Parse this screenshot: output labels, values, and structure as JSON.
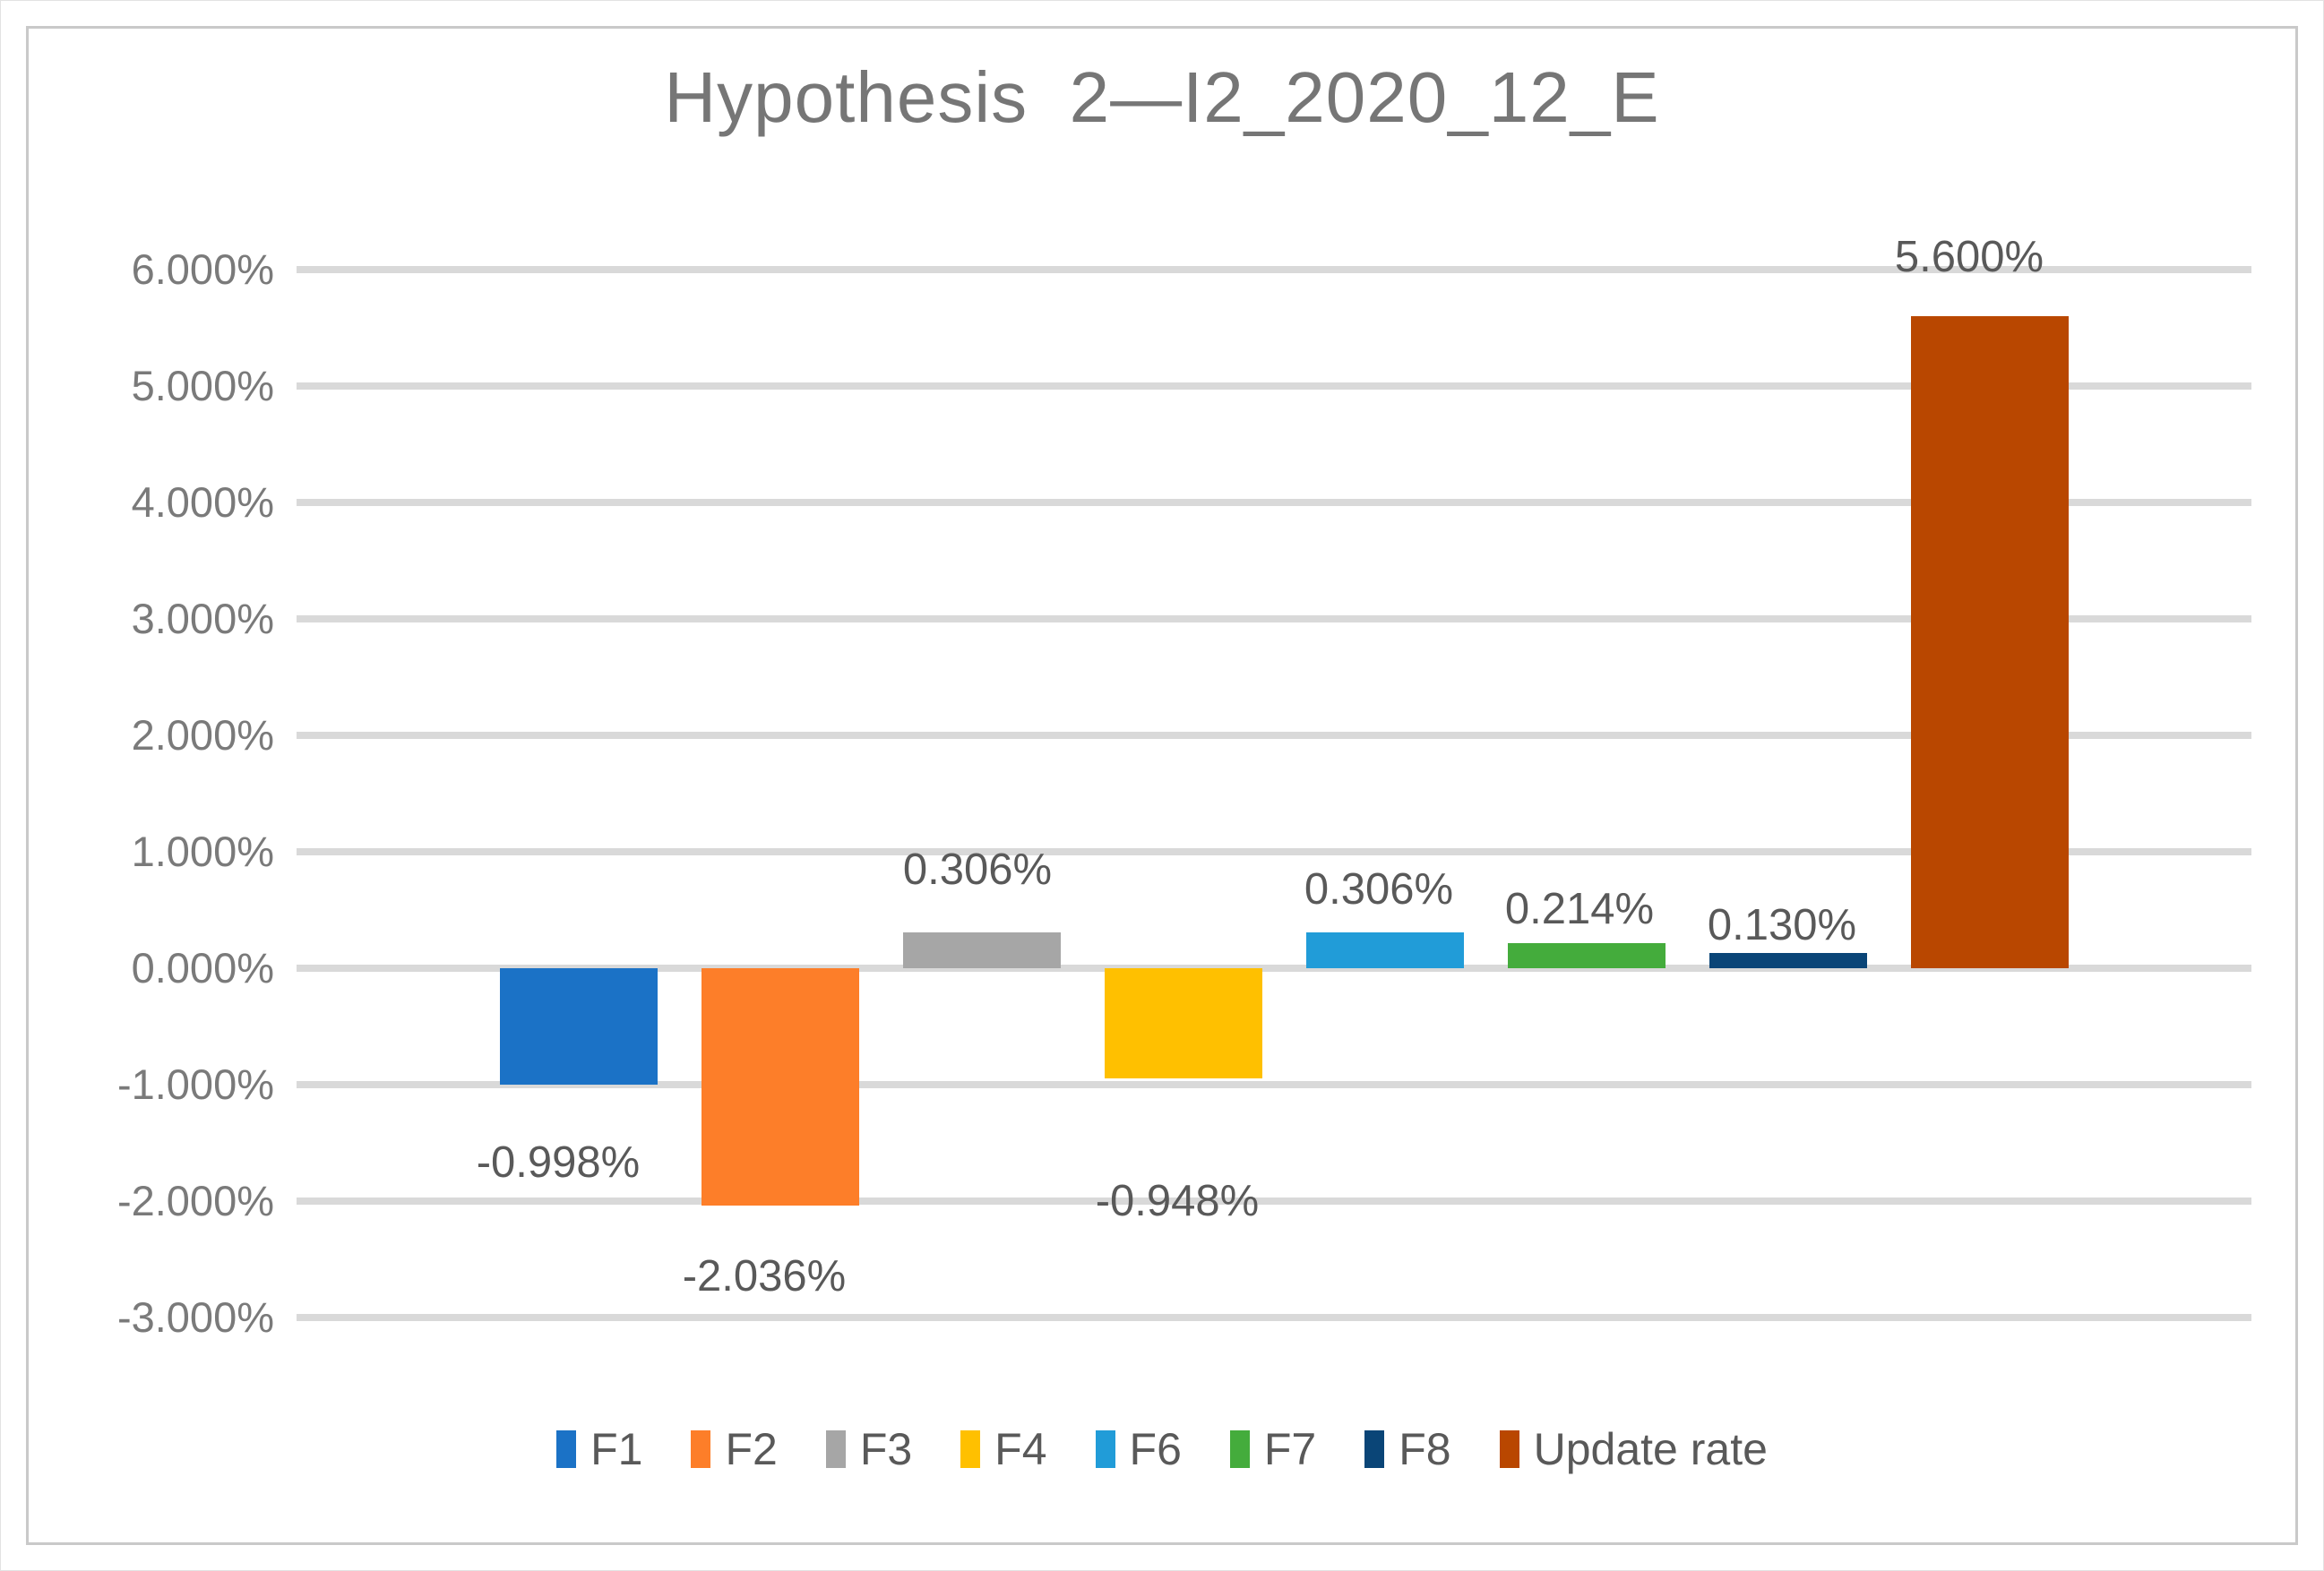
{
  "window": {
    "background": "#ffffff",
    "frame_border_color": "#c9c9c9"
  },
  "chart_data": {
    "type": "bar",
    "title": "Hypothesis  2—I2_2020_12_E",
    "title_color": "#767676",
    "grid": true,
    "gridline_color": "#d9d9d9",
    "legend_position": "bottom",
    "ylim": [
      -3.0,
      6.0
    ],
    "ytick_step": 1.0,
    "yticks": [
      {
        "value": 6,
        "label": "6.000%"
      },
      {
        "value": 5,
        "label": "5.000%"
      },
      {
        "value": 4,
        "label": "4.000%"
      },
      {
        "value": 3,
        "label": "3.000%"
      },
      {
        "value": 2,
        "label": "2.000%"
      },
      {
        "value": 1,
        "label": "1.000%"
      },
      {
        "value": 0,
        "label": "0.000%"
      },
      {
        "value": -1,
        "label": "-1.000%"
      },
      {
        "value": -2,
        "label": "-2.000%"
      },
      {
        "value": -3,
        "label": "-3.000%"
      }
    ],
    "categories": [
      "F1",
      "F2",
      "F3",
      "F4",
      "F6",
      "F7",
      "F8",
      "Update rate"
    ],
    "series": [
      {
        "name": "F1",
        "value": -0.998,
        "label": "-0.998%",
        "color": "#1b72c6"
      },
      {
        "name": "F2",
        "value": -2.036,
        "label": "-2.036%",
        "color": "#fd7e29"
      },
      {
        "name": "F3",
        "value": 0.306,
        "label": "0.306%",
        "color": "#a6a6a6"
      },
      {
        "name": "F4",
        "value": -0.948,
        "label": "-0.948%",
        "color": "#ffc000"
      },
      {
        "name": "F6",
        "value": 0.306,
        "label": "0.306%",
        "color": "#219cd8"
      },
      {
        "name": "F7",
        "value": 0.214,
        "label": "0.214%",
        "color": "#44ac3c"
      },
      {
        "name": "F8",
        "value": 0.13,
        "label": "0.130%",
        "color": "#0a4577"
      },
      {
        "name": "Update rate",
        "value": 5.6,
        "label": "5.600%",
        "color": "#b94700"
      }
    ],
    "legend": [
      {
        "label": "F1",
        "color": "#1b72c6"
      },
      {
        "label": "F2",
        "color": "#fd7e29"
      },
      {
        "label": "F3",
        "color": "#a6a6a6"
      },
      {
        "label": "F4",
        "color": "#ffc000"
      },
      {
        "label": "F6",
        "color": "#219cd8"
      },
      {
        "label": "F7",
        "color": "#44ac3c"
      },
      {
        "label": "F8",
        "color": "#0a4577"
      },
      {
        "label": "Update rate",
        "color": "#b94700"
      }
    ]
  }
}
